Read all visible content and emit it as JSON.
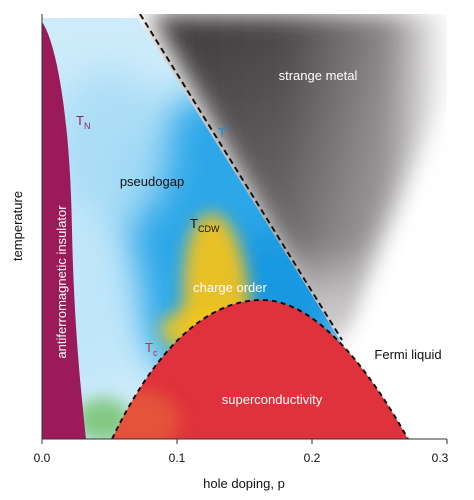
{
  "labels": {
    "strange_metal": "strange metal",
    "pseudogap": "pseudogap",
    "charge_order": "charge order",
    "fermi_liquid": "Fermi liquid",
    "superconductivity": "superconductivity",
    "antiferromagnetic_insulator": "antiferromagnetic insulator",
    "t_n_main": "T",
    "t_n_sub": "N",
    "t_star_main": "T",
    "t_star_sup": "*",
    "t_cdw_main": "T",
    "t_cdw_sub": "CDW",
    "t_c_main": "T",
    "t_c_sub": "c"
  },
  "axes": {
    "xlabel": "hole doping, p",
    "ylabel": "temperature",
    "x_ticks": [
      "0.0",
      "0.1",
      "0.2",
      "0.3"
    ]
  },
  "colors": {
    "antiferromagnet": "#9b1b5a",
    "pseudogap_blue": "#1ea0e6",
    "pseudogap_light": "#bfe4f8",
    "charge_order_yellow": "#f2c21c",
    "superconductor_red": "#e0323c",
    "strange_metal_dark": "#2e2a2b",
    "green_patch": "#7cc576",
    "tc_label": "#d8262d",
    "tn_label": "#9b1b5a",
    "tstar_label": "#1c8fd6"
  }
}
